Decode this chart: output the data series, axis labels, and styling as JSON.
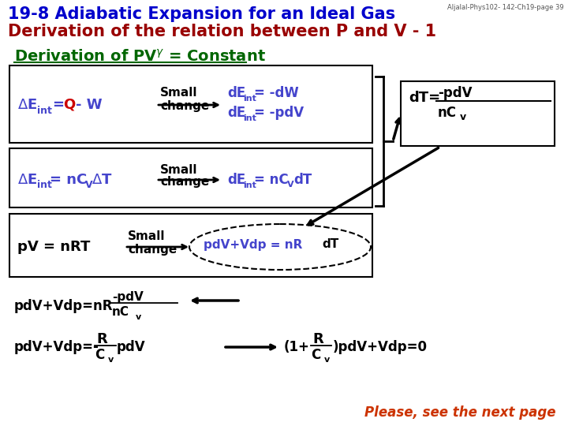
{
  "title1": "19-8 Adiabatic Expansion for an Ideal Gas",
  "title2": "Derivation of the relation between P and V - 1",
  "watermark": "Aljalal-Phys102- 142-Ch19-page 39",
  "subtitle": "Derivation of PVγ = Constant",
  "title1_color": "#0000CC",
  "title2_color": "#990000",
  "subtitle_color": "#006600",
  "please_text": "Please, see the next page",
  "please_color": "#CC3300",
  "bg_color": "#FFFFFF",
  "arrow_color": "#000000"
}
